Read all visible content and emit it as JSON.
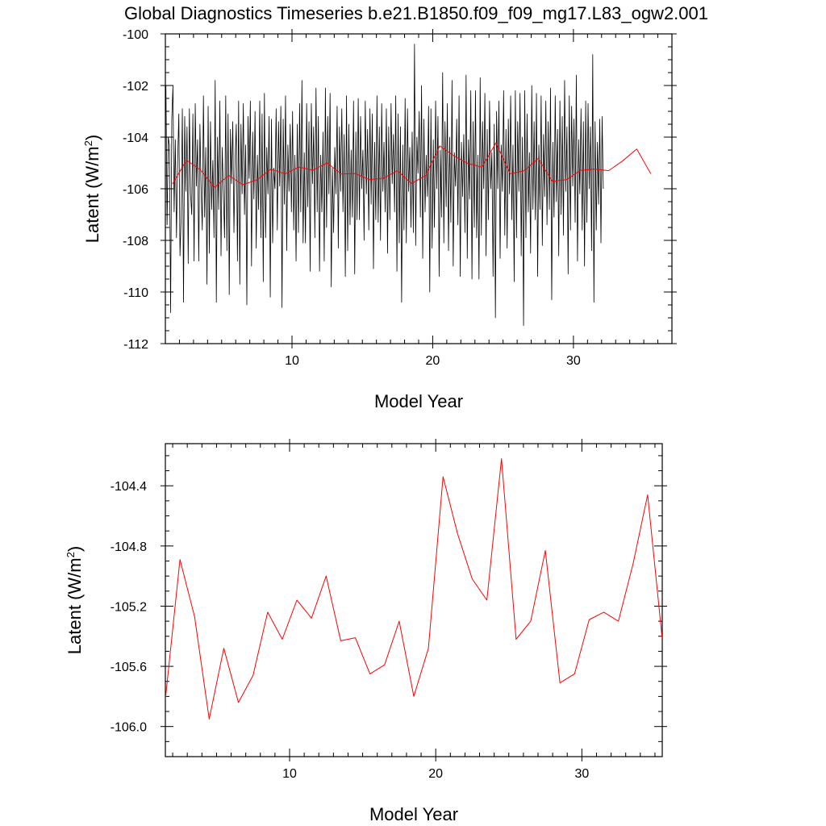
{
  "figure": {
    "title": "Global Diagnostics Timeseries b.e21.B1850.f09_f09_mg17.L83_ogw2.001"
  },
  "chart_data": [
    {
      "type": "line",
      "title": "Global Diagnostics Timeseries b.e21.B1850.f09_f09_mg17.L83_ogw2.001",
      "xlabel": "Model Year",
      "ylabel_main": "Latent (W/m",
      "ylabel_sup": "2",
      "ylabel_close": ")",
      "xlim": [
        1,
        37
      ],
      "ylim": [
        -112,
        -100
      ],
      "x_ticks": [
        10,
        20,
        30
      ],
      "x_tick_labels": [
        "10",
        "20",
        "30"
      ],
      "y_ticks": [
        -112,
        -110,
        -108,
        -106,
        -104,
        -102,
        -100
      ],
      "y_tick_labels": [
        "-112",
        "-110",
        "-108",
        "-106",
        "-104",
        "-102",
        "-100"
      ],
      "grid": false,
      "series": [
        {
          "color": "#000000",
          "x_start": 1.04,
          "x_step": 0.08333,
          "values": [
            -102.0,
            -107.4,
            -104.0,
            -104.3,
            -110.8,
            -103.3,
            -102.0,
            -106.9,
            -104.1,
            -107.9,
            -104.9,
            -103.1,
            -108.6,
            -107.1,
            -102.9,
            -110.4,
            -103.2,
            -106.1,
            -103.6,
            -108.9,
            -102.9,
            -106.2,
            -107.0,
            -103.1,
            -108.8,
            -102.7,
            -105.9,
            -104.1,
            -108.8,
            -103.5,
            -106.0,
            -107.6,
            -102.4,
            -107.1,
            -104.4,
            -109.7,
            -102.8,
            -108.5,
            -103.4,
            -106.8,
            -104.9,
            -107.9,
            -101.8,
            -110.4,
            -104.0,
            -106.8,
            -102.6,
            -108.6,
            -104.4,
            -106.1,
            -107.9,
            -102.4,
            -108.4,
            -103.1,
            -110.1,
            -103.7,
            -105.8,
            -103.4,
            -107.7,
            -104.9,
            -103.5,
            -108.8,
            -102.6,
            -109.7,
            -103.5,
            -106.2,
            -102.7,
            -107.0,
            -104.3,
            -110.5,
            -103.2,
            -105.6,
            -102.6,
            -109.0,
            -103.8,
            -106.4,
            -103.0,
            -108.3,
            -104.7,
            -106.8,
            -102.6,
            -107.9,
            -103.1,
            -109.6,
            -102.3,
            -107.9,
            -104.4,
            -106.2,
            -103.2,
            -110.2,
            -103.3,
            -108.1,
            -105.2,
            -106.0,
            -102.9,
            -107.6,
            -103.4,
            -105.9,
            -102.8,
            -110.6,
            -103.3,
            -106.6,
            -102.4,
            -108.4,
            -104.3,
            -106.1,
            -103.5,
            -106.9,
            -103.0,
            -107.6,
            -104.7,
            -108.8,
            -103.5,
            -107.7,
            -102.7,
            -106.9,
            -101.8,
            -108.1,
            -104.6,
            -108.1,
            -102.7,
            -106.7,
            -103.4,
            -109.2,
            -102.7,
            -105.8,
            -103.6,
            -107.9,
            -102.1,
            -106.9,
            -103.2,
            -109.2,
            -104.7,
            -106.9,
            -103.8,
            -108.8,
            -102.1,
            -107.5,
            -103.2,
            -106.2,
            -102.3,
            -109.8,
            -105.2,
            -107.7,
            -104.4,
            -106.2,
            -102.8,
            -108.3,
            -103.6,
            -106.1,
            -102.9,
            -106.9,
            -103.9,
            -109.4,
            -102.4,
            -108.4,
            -103.5,
            -107.4,
            -104.5,
            -107.1,
            -102.6,
            -109.3,
            -103.8,
            -107.2,
            -102.5,
            -107.2,
            -103.2,
            -106.0,
            -104.5,
            -108.0,
            -102.6,
            -106.2,
            -103.7,
            -107.6,
            -102.9,
            -106.6,
            -103.1,
            -109.1,
            -104.2,
            -107.2,
            -102.4,
            -107.3,
            -103.6,
            -108.0,
            -102.7,
            -106.1,
            -104.2,
            -106.9,
            -102.9,
            -108.5,
            -103.6,
            -107.2,
            -102.7,
            -105.8,
            -103.9,
            -106.9,
            -102.4,
            -109.2,
            -103.1,
            -108.1,
            -103.6,
            -110.4,
            -104.3,
            -107.6,
            -102.5,
            -108.1,
            -102.9,
            -106.1,
            -104.4,
            -107.5,
            -103.8,
            -107.7,
            -100.4,
            -108.2,
            -104.0,
            -105.4,
            -103.0,
            -107.1,
            -102.0,
            -108.7,
            -103.3,
            -106.9,
            -104.7,
            -106.3,
            -102.8,
            -110.0,
            -102.9,
            -108.3,
            -104.1,
            -107.5,
            -102.6,
            -106.0,
            -103.2,
            -109.4,
            -104.5,
            -107.1,
            -101.5,
            -108.1,
            -103.4,
            -106.7,
            -102.7,
            -108.4,
            -104.0,
            -107.3,
            -101.8,
            -109.0,
            -104.6,
            -105.9,
            -103.3,
            -107.4,
            -102.4,
            -109.4,
            -104.2,
            -106.3,
            -103.9,
            -107.7,
            -101.6,
            -108.7,
            -104.1,
            -106.4,
            -102.2,
            -109.5,
            -103.4,
            -107.5,
            -102.2,
            -107.9,
            -104.7,
            -109.5,
            -101.7,
            -107.8,
            -103.4,
            -106.0,
            -102.3,
            -108.6,
            -103.7,
            -107.2,
            -102.6,
            -106.0,
            -104.6,
            -109.4,
            -103.5,
            -111.0,
            -103.0,
            -106.0,
            -102.6,
            -108.7,
            -104.3,
            -106.1,
            -102.2,
            -107.8,
            -103.7,
            -108.3,
            -103.3,
            -106.2,
            -102.4,
            -107.2,
            -104.3,
            -109.6,
            -102.2,
            -107.9,
            -103.4,
            -106.1,
            -102.3,
            -108.6,
            -104.0,
            -111.3,
            -102.2,
            -107.9,
            -103.1,
            -106.9,
            -104.6,
            -108.5,
            -102.0,
            -106.8,
            -103.4,
            -107.2,
            -102.3,
            -109.4,
            -104.3,
            -106.8,
            -102.4,
            -108.2,
            -103.9,
            -106.3,
            -102.6,
            -107.4,
            -103.4,
            -106.8,
            -102.1,
            -110.3,
            -104.2,
            -107.1,
            -102.4,
            -106.5,
            -103.7,
            -108.6,
            -102.6,
            -107.0,
            -103.2,
            -107.8,
            -101.8,
            -106.1,
            -103.6,
            -109.3,
            -102.4,
            -107.6,
            -102.8,
            -105.9,
            -103.3,
            -107.3,
            -101.6,
            -108.8,
            -104.1,
            -106.2,
            -102.9,
            -107.6,
            -103.4,
            -109.0,
            -102.6,
            -107.3,
            -102.7,
            -106.0,
            -103.6,
            -108.4,
            -100.8,
            -110.4,
            -103.4,
            -107.6,
            -104.2,
            -106.6,
            -103.3,
            -108.1,
            -103.2,
            -106.0
          ]
        },
        {
          "color": "#ff0000",
          "x": [
            1.5,
            2.5,
            3.5,
            4.5,
            5.5,
            6.5,
            7.5,
            8.5,
            9.5,
            10.5,
            11.5,
            12.5,
            13.5,
            14.5,
            15.5,
            16.5,
            17.5,
            18.5,
            19.5,
            20.5,
            21.5,
            22.5,
            23.5,
            24.5,
            25.5,
            26.5,
            27.5,
            28.5,
            29.5,
            30.5,
            31.5,
            32.5,
            33.5,
            34.5,
            35.5
          ],
          "values": [
            -105.82,
            -104.89,
            -105.27,
            -105.95,
            -105.48,
            -105.84,
            -105.66,
            -105.24,
            -105.42,
            -105.16,
            -105.28,
            -105.0,
            -105.43,
            -105.41,
            -105.65,
            -105.59,
            -105.3,
            -105.8,
            -105.48,
            -104.34,
            -104.72,
            -105.02,
            -105.16,
            -104.22,
            -105.42,
            -105.3,
            -104.83,
            -105.71,
            -105.65,
            -105.29,
            -105.24,
            -105.3,
            -104.92,
            -104.46,
            -105.42
          ]
        }
      ]
    },
    {
      "type": "line",
      "xlabel": "Model Year",
      "ylabel_main": "Latent (W/m",
      "ylabel_sup": "2",
      "ylabel_close": ")",
      "xlim": [
        1.5,
        35.5
      ],
      "ylim": [
        -106.2,
        -104.12
      ],
      "x_ticks": [
        10,
        20,
        30
      ],
      "x_tick_labels": [
        "10",
        "20",
        "30"
      ],
      "y_ticks": [
        -106.0,
        -105.6,
        -105.2,
        -104.8,
        -104.4
      ],
      "y_tick_labels": [
        "-106.0",
        "-105.6",
        "-105.2",
        "-104.8",
        "-104.4"
      ],
      "grid": false,
      "series": [
        {
          "color": "#ff0000",
          "x": [
            1.5,
            2.5,
            3.5,
            4.5,
            5.5,
            6.5,
            7.5,
            8.5,
            9.5,
            10.5,
            11.5,
            12.5,
            13.5,
            14.5,
            15.5,
            16.5,
            17.5,
            18.5,
            19.5,
            20.5,
            21.5,
            22.5,
            23.5,
            24.5,
            25.5,
            26.5,
            27.5,
            28.5,
            29.5,
            30.5,
            31.5,
            32.5,
            33.5,
            34.5,
            35.5
          ],
          "values": [
            -105.82,
            -104.89,
            -105.27,
            -105.95,
            -105.48,
            -105.84,
            -105.66,
            -105.24,
            -105.42,
            -105.16,
            -105.28,
            -105.0,
            -105.43,
            -105.41,
            -105.65,
            -105.59,
            -105.3,
            -105.8,
            -105.48,
            -104.34,
            -104.72,
            -105.02,
            -105.16,
            -104.22,
            -105.42,
            -105.3,
            -104.83,
            -105.71,
            -105.65,
            -105.29,
            -105.24,
            -105.3,
            -104.92,
            -104.46,
            -105.42
          ]
        }
      ]
    }
  ]
}
